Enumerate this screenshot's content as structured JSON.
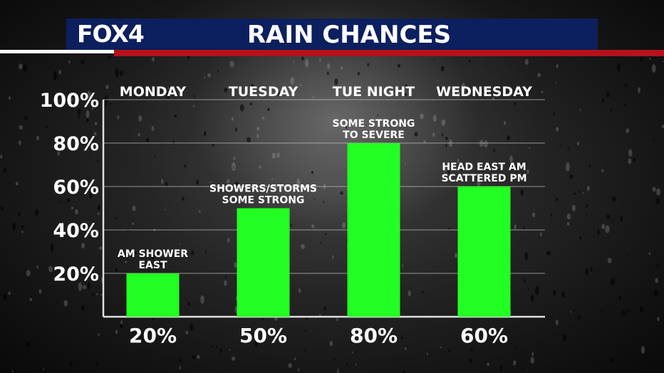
{
  "header": {
    "logo": "FOX4",
    "title": "RAIN CHANCES"
  },
  "colors": {
    "banner": "#0c1f5e",
    "accent_red": "#b5121b",
    "bar": "#22ff22"
  },
  "chart_data": {
    "type": "bar",
    "title": "RAIN CHANCES",
    "categories": [
      "MONDAY",
      "TUESDAY",
      "TUE NIGHT",
      "WEDNESDAY"
    ],
    "values": [
      20,
      50,
      80,
      60
    ],
    "value_labels": [
      "20%",
      "50%",
      "80%",
      "60%"
    ],
    "annotations": [
      [
        "AM SHOWER",
        "EAST"
      ],
      [
        "SHOWERS/STORMS",
        "SOME STRONG"
      ],
      [
        "SOME STRONG",
        "TO SEVERE"
      ],
      [
        "HEAD EAST AM",
        "SCATTERED PM"
      ]
    ],
    "ylim": [
      0,
      100
    ],
    "yticks": [
      20,
      40,
      60,
      80,
      100
    ],
    "ytick_labels": [
      "20%",
      "40%",
      "60%",
      "80%",
      "100%"
    ],
    "xlabel": "",
    "ylabel": "",
    "grid": true,
    "legend": "none"
  }
}
